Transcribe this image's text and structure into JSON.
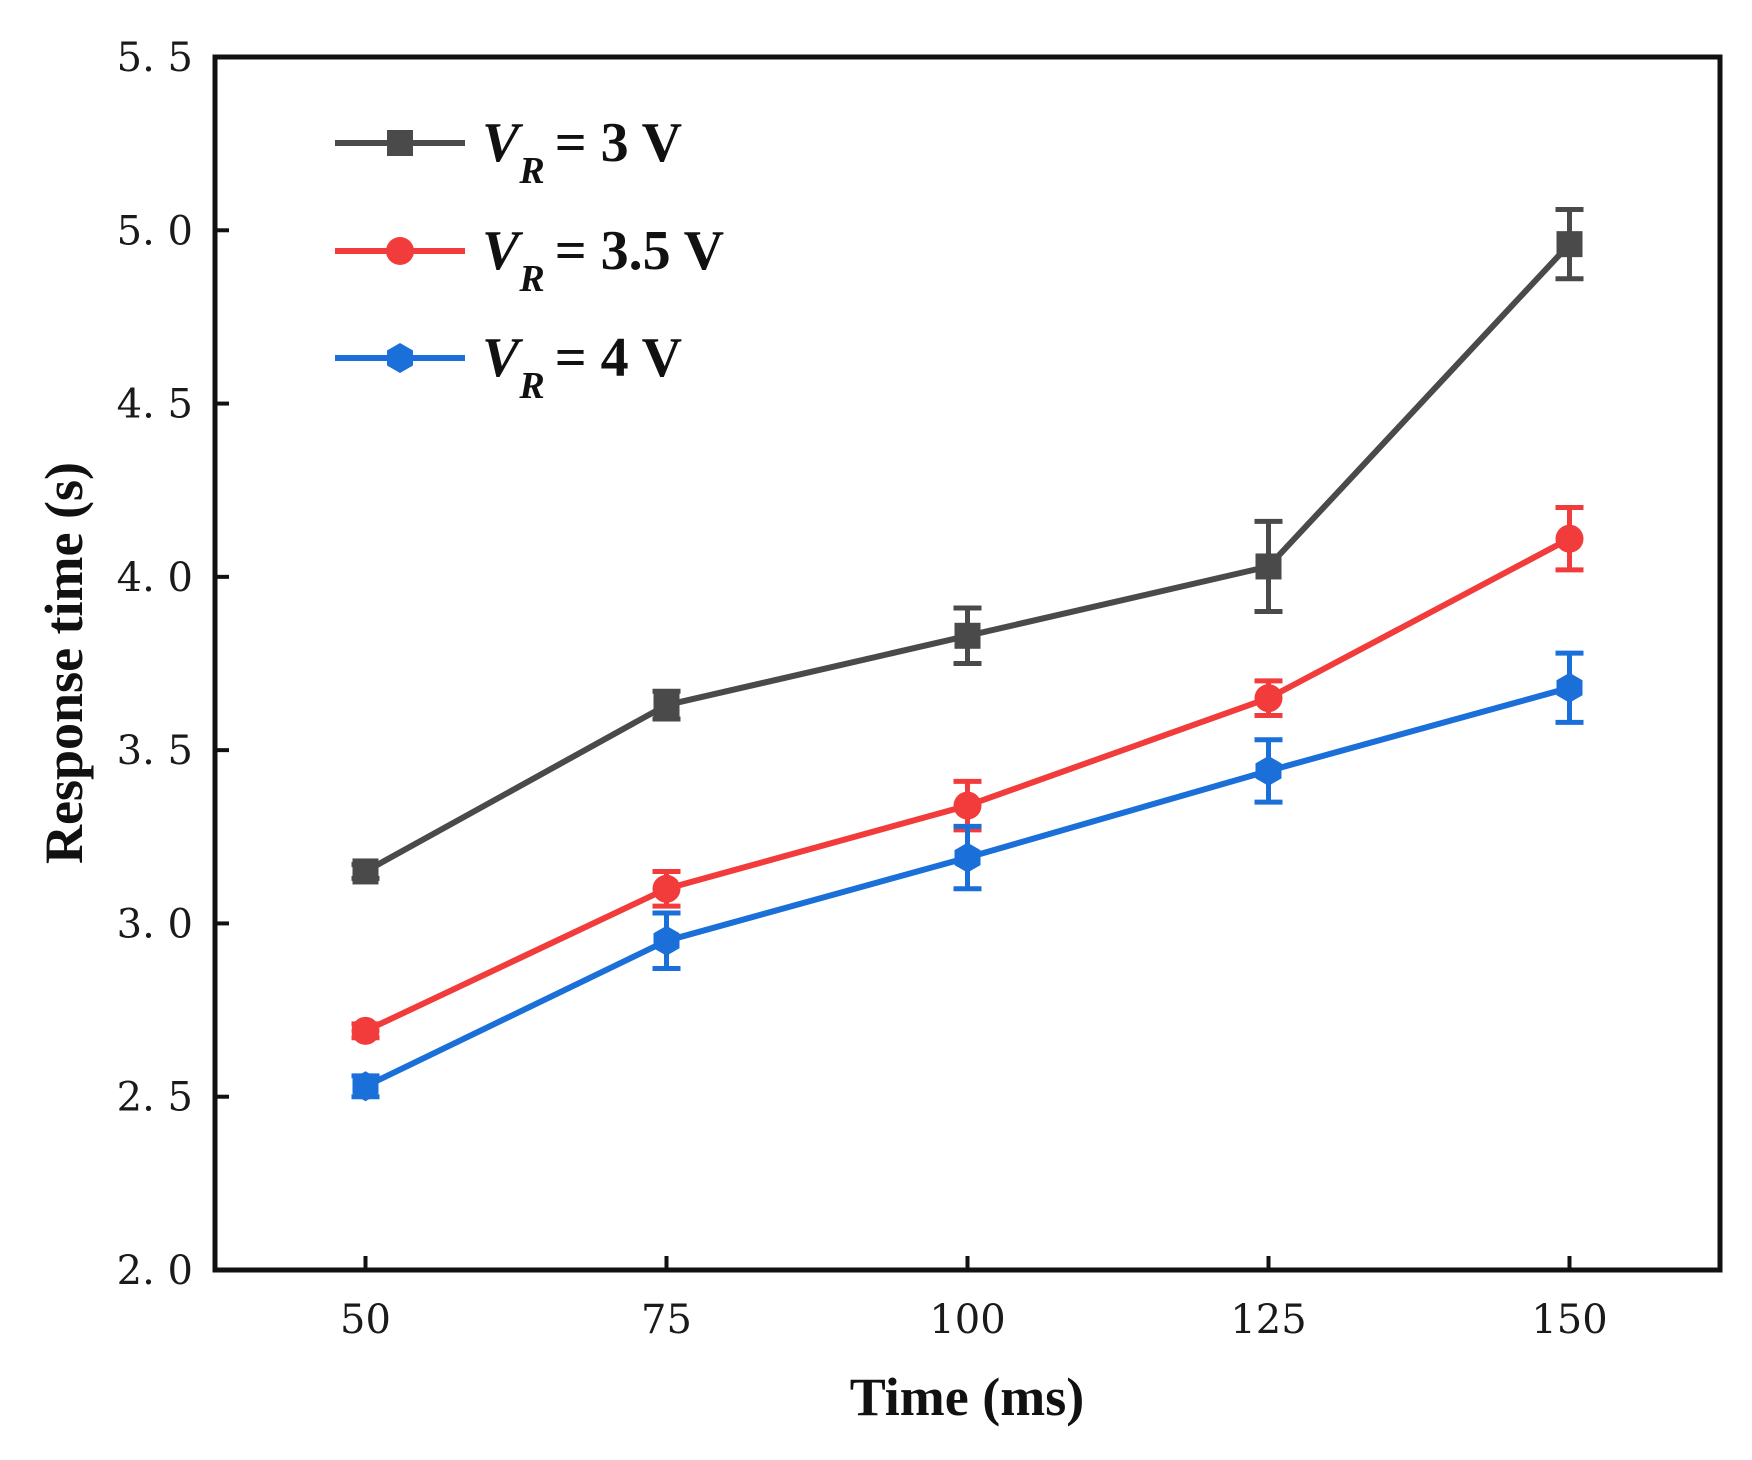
{
  "chart_data": {
    "type": "line",
    "title": "",
    "xlabel": "Time (ms)",
    "ylabel": "Response time (s)",
    "x": [
      50,
      75,
      100,
      125,
      150
    ],
    "xticks": [
      "50",
      "75",
      "100",
      "125",
      "150"
    ],
    "xlim": [
      37.5,
      162.5
    ],
    "ylim": [
      2.0,
      5.5
    ],
    "yticks": [
      "2. 0",
      "2. 5",
      "3. 0",
      "3. 5",
      "4. 0",
      "4. 5",
      "5. 0",
      "5. 5"
    ],
    "ytick_values": [
      2.0,
      2.5,
      3.0,
      3.5,
      4.0,
      4.5,
      5.0,
      5.5
    ],
    "grid": false,
    "legend_position": "top-left",
    "series": [
      {
        "name": "V_R = 3 V",
        "legend_var": "V",
        "legend_sub": "R",
        "legend_rest": "= 3 V",
        "color": "#4a4a4a",
        "marker": "square",
        "values": [
          3.15,
          3.63,
          3.83,
          4.03,
          4.96
        ],
        "errors": [
          0.02,
          0.04,
          0.08,
          0.13,
          0.1
        ]
      },
      {
        "name": "V_R = 3.5 V",
        "legend_var": "V",
        "legend_sub": "R",
        "legend_rest": "= 3.5 V",
        "color": "#f23c3c",
        "marker": "circle",
        "values": [
          2.69,
          3.1,
          3.34,
          3.65,
          4.11
        ],
        "errors": [
          0.02,
          0.05,
          0.07,
          0.05,
          0.09
        ]
      },
      {
        "name": "V_R = 4 V",
        "legend_var": "V",
        "legend_sub": "R",
        "legend_rest": "= 4 V",
        "color": "#1a6fd8",
        "marker": "hexagon",
        "values": [
          2.53,
          2.95,
          3.19,
          3.44,
          3.68
        ],
        "errors": [
          0.03,
          0.08,
          0.09,
          0.09,
          0.1
        ]
      }
    ]
  }
}
